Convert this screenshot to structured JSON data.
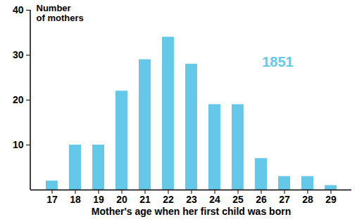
{
  "chart_data": {
    "type": "bar",
    "ylabel": "Number\nof mothers",
    "xlabel": "Mother's age when her first child was born",
    "annotation": "1851",
    "categories": [
      "17",
      "18",
      "19",
      "20",
      "21",
      "22",
      "23",
      "24",
      "25",
      "26",
      "27",
      "28",
      "29"
    ],
    "values": [
      2,
      10,
      10,
      22,
      29,
      34,
      28,
      19,
      19,
      7,
      3,
      3,
      1
    ],
    "color": "#64c8e8",
    "ylim": [
      0,
      40
    ],
    "yticks": [
      10,
      20,
      30,
      40
    ],
    "grid": false
  }
}
